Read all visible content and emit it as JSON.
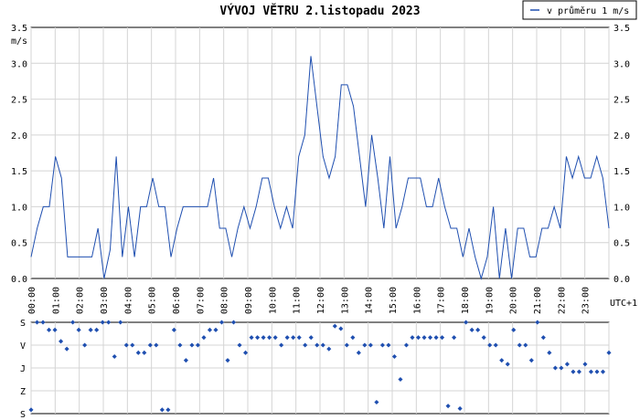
{
  "chart_data": [
    {
      "type": "line",
      "title": "VÝVOJ VĚTRU  2.listopadu 2023",
      "ylabel": "m/s",
      "xlabel": "UTC+1",
      "ylim": [
        0,
        3.5
      ],
      "yticks": [
        "0.0",
        "0.5",
        "1.0",
        "1.5",
        "2.0",
        "2.5",
        "3.0",
        "3.5"
      ],
      "xticks": [
        "00:00",
        "01:00",
        "02:00",
        "03:00",
        "04:00",
        "05:00",
        "06:00",
        "07:00",
        "08:00",
        "09:00",
        "10:00",
        "11:00",
        "12:00",
        "13:00",
        "14:00",
        "15:00",
        "16:00",
        "17:00",
        "18:00",
        "19:00",
        "20:00",
        "21:00",
        "22:00",
        "23:00"
      ],
      "x_range_hours": [
        0,
        24
      ],
      "grid": true,
      "legend_position": "top-right",
      "line_color": "#1f4fb0",
      "series": [
        {
          "name": "v průměru 1 m/s",
          "values": [
            0.3,
            0.7,
            1.0,
            1.0,
            1.7,
            1.4,
            0.3,
            0.3,
            0.3,
            0.3,
            0.3,
            0.7,
            0.0,
            0.4,
            1.7,
            0.3,
            1.0,
            0.3,
            1.0,
            1.0,
            1.4,
            1.0,
            1.0,
            0.3,
            0.7,
            1.0,
            1.0,
            1.0,
            1.0,
            1.0,
            1.4,
            0.7,
            0.7,
            0.3,
            0.7,
            1.0,
            0.7,
            1.0,
            1.4,
            1.4,
            1.0,
            0.7,
            1.0,
            0.7,
            1.7,
            2.0,
            3.1,
            2.4,
            1.7,
            1.4,
            1.7,
            2.7,
            2.7,
            2.4,
            1.7,
            1.0,
            2.0,
            1.4,
            0.7,
            1.7,
            0.7,
            1.0,
            1.4,
            1.4,
            1.4,
            1.0,
            1.0,
            1.4,
            1.0,
            0.7,
            0.7,
            0.3,
            0.7,
            0.3,
            0.0,
            0.3,
            1.0,
            0.0,
            0.7,
            0.0,
            0.7,
            0.7,
            0.3,
            0.3,
            0.7,
            0.7,
            1.0,
            0.7,
            1.7,
            1.4,
            1.7,
            1.4,
            1.4,
            1.7,
            1.4,
            0.7
          ]
        }
      ]
    },
    {
      "type": "scatter",
      "title": "",
      "ylabel": "",
      "xlabel": "",
      "categories": [
        "S",
        "V",
        "J",
        "Z",
        "S"
      ],
      "direction_ylim": [
        0,
        360
      ],
      "x_range_hours": [
        0,
        24
      ],
      "grid": true,
      "point_color": "#1f4fb0",
      "series": [
        {
          "name": "",
          "values": [
            345,
            0,
            0,
            30,
            30,
            75,
            105,
            0,
            30,
            90,
            30,
            30,
            0,
            0,
            135,
            0,
            90,
            90,
            120,
            120,
            90,
            90,
            345,
            345,
            30,
            90,
            150,
            90,
            90,
            60,
            30,
            30,
            0,
            150,
            0,
            90,
            120,
            60,
            60,
            60,
            60,
            60,
            90,
            60,
            60,
            60,
            90,
            60,
            90,
            90,
            105,
            15,
            25,
            90,
            60,
            120,
            90,
            90,
            315,
            90,
            90,
            135,
            225,
            90,
            60,
            60,
            60,
            60,
            60,
            60,
            330,
            60,
            340,
            0,
            30,
            30,
            60,
            90,
            90,
            150,
            165,
            30,
            90,
            90,
            150,
            0,
            60,
            120,
            180,
            180,
            165,
            195,
            195,
            165,
            195,
            195,
            195,
            120
          ]
        }
      ]
    }
  ]
}
